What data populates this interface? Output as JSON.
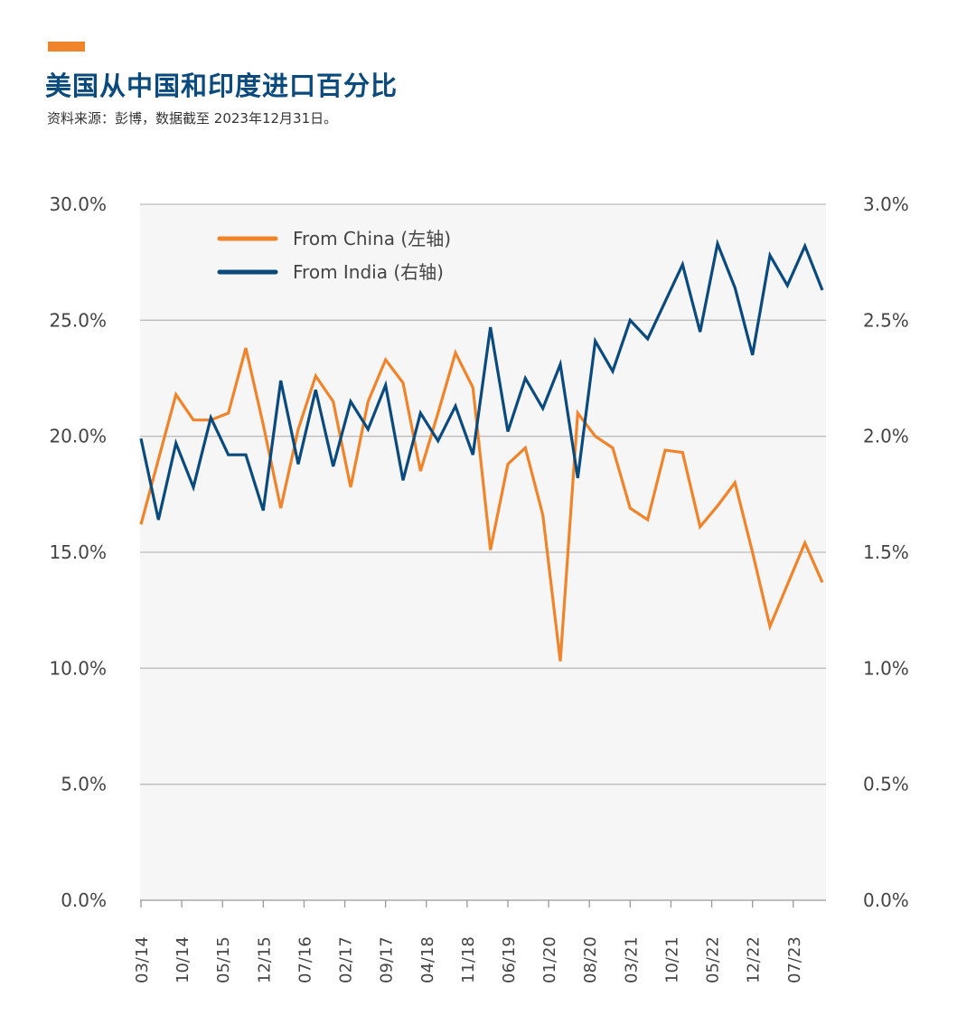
{
  "header": {
    "title": "美国从中国和印度进口百分比",
    "subtitle": "资料来源：彭博，数据截至 2023年12月31日。"
  },
  "colors": {
    "accent": "#f0842a",
    "china": "#f0842a",
    "india": "#0b4a7d",
    "plot_bg": "#f6f6f6",
    "grid": "#bdbdbd"
  },
  "chart_data": {
    "type": "line",
    "title": "美国从中国和印度进口百分比",
    "legend_placement": "top-left",
    "grid": true,
    "x_tick_labels": [
      "03/14",
      "10/14",
      "05/15",
      "12/15",
      "07/16",
      "02/17",
      "09/17",
      "04/18",
      "11/18",
      "06/19",
      "01/20",
      "08/20",
      "03/21",
      "10/21",
      "05/22",
      "12/22",
      "07/23"
    ],
    "x_start": "03/14",
    "x_end": "12/23",
    "x_frequency": "quarterly",
    "y_left": {
      "ylim": [
        0,
        30
      ],
      "ticks": [
        "0.0%",
        "5.0%",
        "10.0%",
        "15.0%",
        "20.0%",
        "25.0%",
        "30.0%"
      ]
    },
    "y_right": {
      "ylim": [
        0,
        3
      ],
      "ticks": [
        "0.0%",
        "0.5%",
        "1.0%",
        "1.5%",
        "2.0%",
        "2.5%",
        "3.0%"
      ]
    },
    "series": [
      {
        "name": "From China (左轴)",
        "axis": "left",
        "values": [
          16.2,
          19.0,
          21.8,
          20.7,
          20.7,
          21.0,
          23.8,
          20.5,
          16.9,
          20.3,
          22.6,
          21.5,
          17.8,
          21.5,
          23.3,
          22.3,
          18.5,
          21.0,
          23.6,
          22.1,
          15.1,
          18.8,
          19.5,
          16.6,
          10.3,
          21.0,
          20.0,
          19.5,
          16.9,
          16.4,
          19.4,
          19.3,
          16.1,
          17.0,
          18.0,
          15.0,
          11.8,
          13.6,
          15.4,
          13.7
        ]
      },
      {
        "name": "From India (右轴)",
        "axis": "right",
        "values": [
          1.99,
          1.64,
          1.97,
          1.78,
          2.08,
          1.92,
          1.92,
          1.68,
          2.24,
          1.88,
          2.2,
          1.87,
          2.15,
          2.03,
          2.22,
          1.81,
          2.1,
          1.98,
          2.13,
          1.92,
          2.47,
          2.02,
          2.25,
          2.12,
          2.31,
          1.82,
          2.41,
          2.28,
          2.5,
          2.42,
          2.58,
          2.74,
          2.45,
          2.83,
          2.64,
          2.35,
          2.78,
          2.65,
          2.82,
          2.63
        ]
      }
    ]
  }
}
